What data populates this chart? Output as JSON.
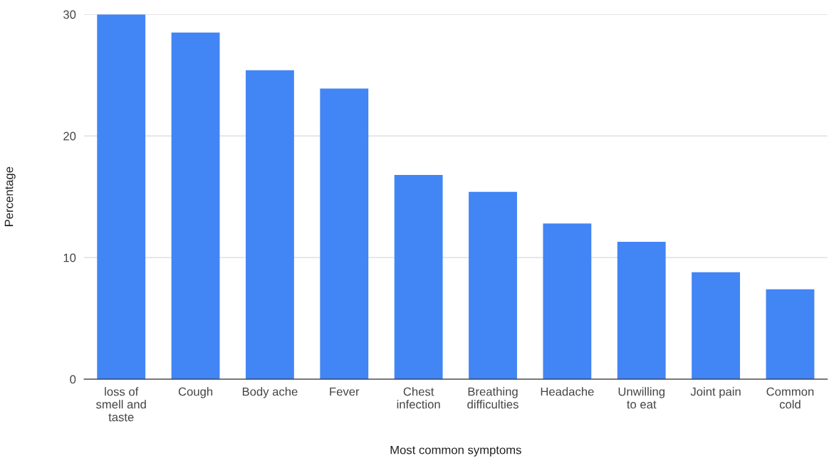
{
  "chart_data": {
    "type": "bar",
    "xlabel": "Most common symptoms",
    "ylabel": "Percentage",
    "categories": [
      "loss of\nsmell and\ntaste",
      "Cough",
      "Body ache",
      "Fever",
      "Chest\ninfection",
      "Breathing\ndifficulties",
      "Headache",
      "Unwilling\nto eat",
      "Joint pain",
      "Common\ncold"
    ],
    "values": [
      30,
      28.5,
      25.4,
      23.9,
      16.8,
      15.4,
      12.8,
      11.3,
      8.8,
      7.4
    ],
    "color": "#4285f4",
    "ylim": [
      0,
      30
    ],
    "yticks": [
      0,
      10,
      20,
      30
    ],
    "grid": "y",
    "legend": false
  }
}
